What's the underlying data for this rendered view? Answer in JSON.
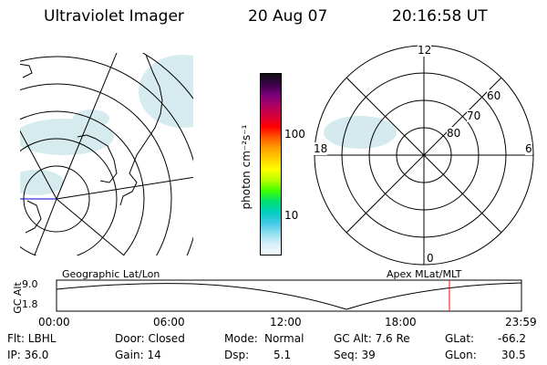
{
  "header": {
    "title": "Ultraviolet Imager",
    "date": "20 Aug 07",
    "time": "20:16:58 UT"
  },
  "colorbar": {
    "unit_label": "photon cm⁻²s⁻¹",
    "ticks": [
      "100",
      "10"
    ],
    "colors": [
      "#101010",
      "#3a0048",
      "#7a007a",
      "#b00060",
      "#d8003a",
      "#ff0000",
      "#ff5a00",
      "#ffa000",
      "#ffd000",
      "#ffff00",
      "#b8ff00",
      "#40ff00",
      "#00e070",
      "#00d0c0",
      "#40c8e8",
      "#90e0f0",
      "#d8f0f8",
      "#f4faff"
    ]
  },
  "polar_plot": {
    "labels": {
      "top": "12",
      "bottom": "0",
      "left": "18",
      "right": "6"
    },
    "lat_labels": [
      "60",
      "70",
      "80"
    ]
  },
  "timeline": {
    "left_label": "Geographic Lat/Lon",
    "right_label": "Apex MLat/MLT",
    "y_axis_label": "GC Alt",
    "y_ticks": [
      "9.0",
      "1.8"
    ],
    "x_ticks": [
      "00:00",
      "06:00",
      "12:00",
      "18:00",
      "23:59"
    ],
    "current_time_fraction": 0.845,
    "marker_color": "#ff0000"
  },
  "status": {
    "row1": {
      "filter": "Flt: LBHL",
      "door": "Door: Closed",
      "mode_label": "Mode:",
      "mode_value": "Normal",
      "gcalt": "GC Alt: 7.6 Re",
      "glat_label": "GLat:",
      "glat_value": "-66.2"
    },
    "row2": {
      "ip": "IP: 36.0",
      "gain": "Gain: 14",
      "dsp_label": "Dsp:",
      "dsp_value": "5.1",
      "seq": "Seq: 39",
      "glon_label": "GLon:",
      "glon_value": "30.5"
    }
  }
}
